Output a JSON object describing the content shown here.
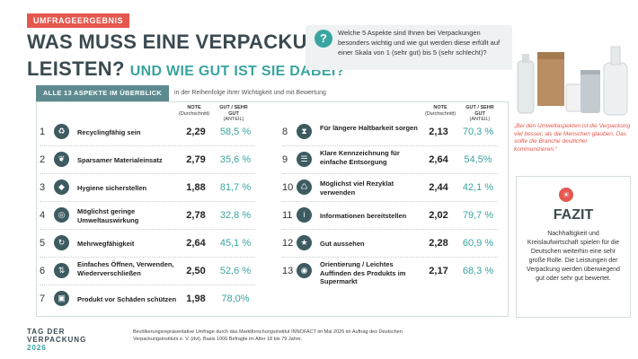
{
  "header": {
    "badge": "UMFRAGEERGEBNIS",
    "title_line1": "WAS MUSS EINE VERPACKUNG",
    "title_line2": "LEISTEN?",
    "title_sub": "UND WIE GUT IST SIE DABEI?"
  },
  "question": {
    "icon": "question-mark-icon",
    "text": "Welche 5 Aspekte sind Ihnen bei Verpackungen besonders wichtig und wie gut werden diese erfüllt auf einer Skala von 1 (sehr gut) bis 5 (sehr schlecht)?"
  },
  "tab": {
    "label": "ALLE 13 ASPEKTE IM ÜBERBLICK",
    "note": "in der Reihenfolge ihrer Wichtigkeit und mit Bewertung"
  },
  "columns": {
    "note_label": "NOTE",
    "note_sub": "(Durchschnitt)",
    "pct_label": "GUT / SEHR GUT",
    "pct_sub": "(ANTEIL)"
  },
  "left_rows": [
    {
      "num": "1",
      "icon": "recycling-icon",
      "label": "Recyclingfähig sein",
      "note": "2,29",
      "pct": "58,5 %"
    },
    {
      "num": "2",
      "icon": "leaf-icon",
      "label": "Sparsamer Materialeinsatz",
      "note": "2,79",
      "pct": "35,6 %"
    },
    {
      "num": "3",
      "icon": "shield-icon",
      "label": "Hygiene sicherstellen",
      "note": "1,88",
      "pct": "81,7 %"
    },
    {
      "num": "4",
      "icon": "earth-icon",
      "label": "Möglichst geringe Umweltauswirkung",
      "note": "2,78",
      "pct": "32,8 %"
    },
    {
      "num": "5",
      "icon": "reuse-icon",
      "label": "Mehrwegfähigkeit",
      "note": "2,64",
      "pct": "45,1 %"
    },
    {
      "num": "6",
      "icon": "open-close-icon",
      "label": "Einfaches Öffnen, Verwenden, Wiederverschließen",
      "note": "2,50",
      "pct": "52,6 %"
    },
    {
      "num": "7",
      "icon": "box-protection-icon",
      "label": "Produkt vor Schäden schützen",
      "note": "1,98",
      "pct": "78,0%"
    }
  ],
  "right_rows": [
    {
      "num": "8",
      "icon": "hourglass-icon",
      "label": "Für längere Haltbarkeit sorgen",
      "note": "2,13",
      "pct": "70,3 %"
    },
    {
      "num": "9",
      "icon": "sort-icon",
      "label": "Klare Kennzeichnung für einfache Entsorgung",
      "note": "2,64",
      "pct": "54,5%"
    },
    {
      "num": "10",
      "icon": "recycled-material-icon",
      "label": "Möglichst viel Rezyklat verwenden",
      "note": "2,44",
      "pct": "42,1 %"
    },
    {
      "num": "11",
      "icon": "info-icon",
      "label": "Informationen bereitstellen",
      "note": "2,02",
      "pct": "79,7 %"
    },
    {
      "num": "12",
      "icon": "star-icon",
      "label": "Gut aussehen",
      "note": "2,28",
      "pct": "60,9 %"
    },
    {
      "num": "13",
      "icon": "location-icon",
      "label": "Orientierung / Leichtes Auffinden des Produkts im Supermarkt",
      "note": "2,17",
      "pct": "68,3 %"
    }
  ],
  "quote": "„Bei den Umweltaspekten ist die Verpackung viel besser, als die Menschen glauben. Das sollte die Branche deutlicher kommunizieren.“",
  "fazit": {
    "icon": "lightbulb-icon",
    "title": "FAZIT",
    "text": "Nachhaltigkeit und Kreislaufwirtschaft spielen für die Deutschen weiterhin eine sehr große Rolle. Die Leistungen der Verpackung werden überwiegend gut oder sehr gut bewertet."
  },
  "logo": {
    "line1": "TAG DER",
    "line2": "VERPACKUNG",
    "year": "2026"
  },
  "footer": "Bevölkerungsrepräsentative Umfrage durch das Marktforschungsinstitut INNOFACT im Mai 2026 im Auftrag des Deutschen Verpackungsinstituts e. V. (dvi). Basis 1006 Befragte im Alter 18 bis 79 Jahre.",
  "colors": {
    "accent": "#3aa4a0",
    "red": "#e5574f",
    "dark": "#3a4a50"
  }
}
